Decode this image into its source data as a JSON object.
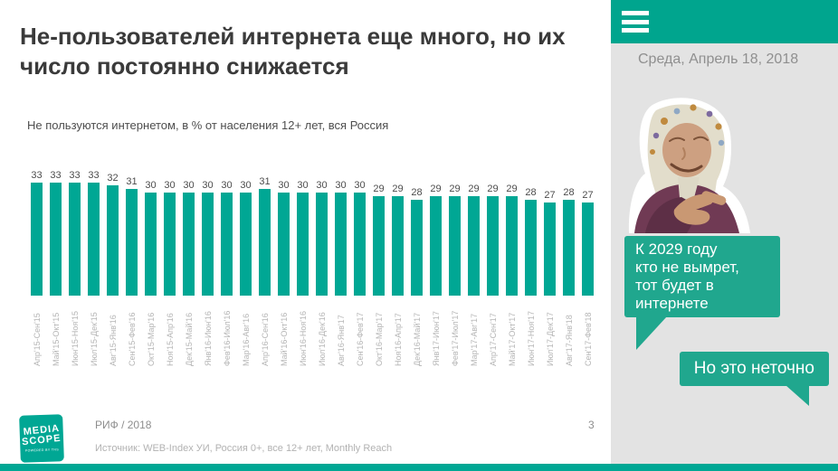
{
  "slide": {
    "title": "Не-пользователей интернета еще много, но их\nчисло постоянно снижается",
    "subtitle": "Не пользуются интернетом, в % от населения 12+ лет, вся Россия",
    "footer": {
      "logo_line1": "MEDIA",
      "logo_line2": "SCOPE",
      "logo_sub": "POWERED BY TNS",
      "event": "РИФ / 2018",
      "source": "Источник: WEB-Index УИ, Россия 0+, все 12+ лет, Monthly Reach",
      "page_number": "3"
    }
  },
  "chart_data": {
    "type": "bar",
    "title": "Не пользуются интернетом, в % от населения 12+ лет, вся Россия",
    "categories": [
      "Апр'15-Сен'15",
      "Май'15-Окт'15",
      "Июн'15-Ноя'15",
      "Июл'15-Дек'15",
      "Авг'15-Янв'16",
      "Сен'15-Фев'16",
      "Окт'15-Мар'16",
      "Ноя'15-Апр'16",
      "Дек'15-Май'16",
      "Янв'16-Июн'16",
      "Фев'16-Июл'16",
      "Мар'16-Авг'16",
      "Апр'16-Сен'16",
      "Май'16-Окт'16",
      "Июн'16-Ноя'16",
      "Июл'16-Дек'16",
      "Авг'16-Янв'17",
      "Сен'16-Фев'17",
      "Окт'16-Мар'17",
      "Ноя'16-Апр'17",
      "Дек'16-Май'17",
      "Янв'17-Июн'17",
      "Фев'17-Июл'17",
      "Мар'17-Авг'17",
      "Апр'17-Сен'17",
      "Май'17-Окт'17",
      "Июн'17-Ноя'17",
      "Июл'17-Дек'17",
      "Авг'17-Янв'18",
      "Сен'17-Фев'18"
    ],
    "values": [
      33,
      33,
      33,
      33,
      32,
      31,
      30,
      30,
      30,
      30,
      30,
      30,
      31,
      30,
      30,
      30,
      30,
      30,
      29,
      29,
      28,
      29,
      29,
      29,
      29,
      29,
      28,
      27,
      28,
      27
    ],
    "xlabel": "",
    "ylabel": "",
    "ylim": [
      0,
      35
    ],
    "grid": false,
    "legend": false,
    "value_labels": true,
    "bar_color": "#00a794"
  },
  "sidebar": {
    "date": "Среда, Апрель 18, 2018",
    "photo_alt": "old-woman-in-headscarf-pointing",
    "bubble_main": "К 2029 году\nкто не вымрет,\nтот будет в\nинтернете",
    "bubble_reply": "Но это неточно"
  },
  "colors": {
    "accent_teal": "#00a794",
    "header_teal": "#00a58e",
    "bubble_teal": "#20a78e",
    "sidebar_bg": "#e3e3e3"
  }
}
